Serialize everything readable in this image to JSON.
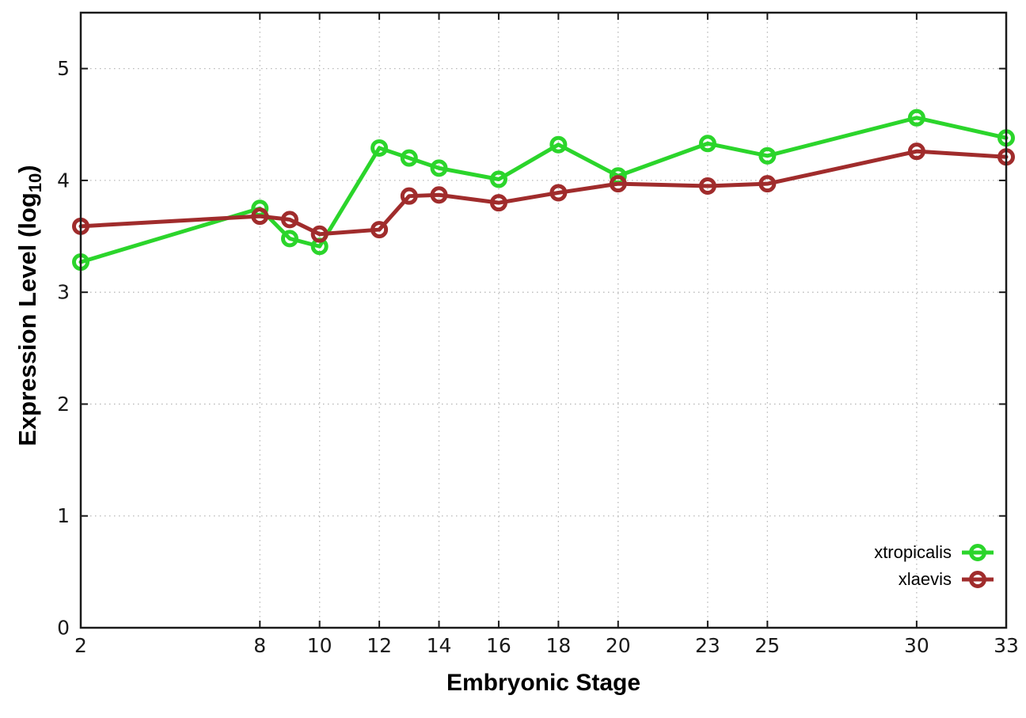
{
  "figure": {
    "background": "#ffffff",
    "border_color": "#1a1a1a",
    "grid_color": "#b8b8b8"
  },
  "chart_data": {
    "type": "line",
    "title": "",
    "xlabel": "Embryonic Stage",
    "ylabel": "Expression Level (log10)",
    "ylabel_parts": {
      "main": "Expression Level (log",
      "sub": "10",
      "end": ")"
    },
    "xlim": [
      2,
      33
    ],
    "ylim": [
      0,
      5.5
    ],
    "xticks": [
      2,
      8,
      10,
      12,
      14,
      16,
      18,
      20,
      23,
      25,
      30,
      33
    ],
    "yticks": [
      0,
      1,
      2,
      3,
      4,
      5
    ],
    "grid": true,
    "legend_position": "inside-bottom-right",
    "x": [
      2,
      8,
      9,
      10,
      12,
      13,
      14,
      16,
      18,
      20,
      23,
      25,
      30,
      33
    ],
    "series": [
      {
        "name": "xtropicalis",
        "color": "#2bd52b",
        "marker": "open-circle",
        "values": [
          3.27,
          3.75,
          3.48,
          3.41,
          4.29,
          4.2,
          4.11,
          4.01,
          4.32,
          4.04,
          4.33,
          4.22,
          4.56,
          4.38
        ]
      },
      {
        "name": "xlaevis",
        "color": "#a02c2c",
        "marker": "open-circle",
        "values": [
          3.59,
          3.68,
          3.65,
          3.52,
          3.56,
          3.86,
          3.87,
          3.8,
          3.89,
          3.97,
          3.95,
          3.97,
          4.26,
          4.21
        ]
      }
    ]
  },
  "legend": {
    "items": [
      {
        "label": "xtropicalis",
        "color": "#2bd52b"
      },
      {
        "label": "xlaevis",
        "color": "#a02c2c"
      }
    ]
  }
}
